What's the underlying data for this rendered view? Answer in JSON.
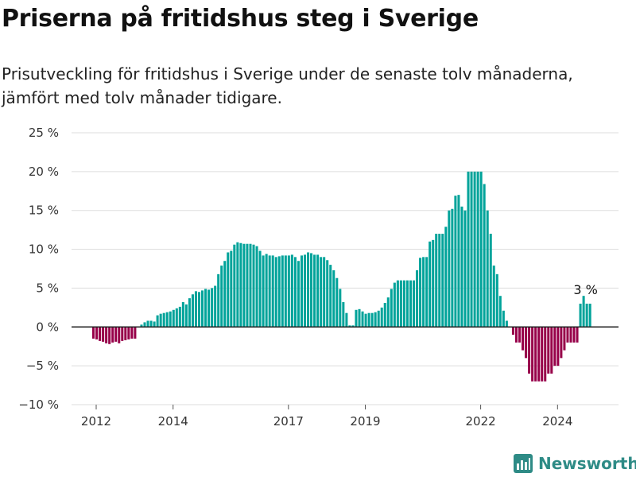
{
  "title": "Priserna på fritidshus steg i Sverige",
  "subtitle": "Prisutveckling för fritidshus i Sverige under de senaste tolv månaderna, jämfört med tolv månader tidigare.",
  "brand": {
    "name": "Newsworthy",
    "icon": "newsworthy-logo-icon"
  },
  "colors": {
    "positive": "#00a39a",
    "negative": "#970049",
    "grid": "#dddddd",
    "zero_line": "#222222"
  },
  "chart_data": {
    "type": "bar",
    "title": "",
    "xlabel": "",
    "ylabel": "",
    "unit": "%",
    "ylim": [
      -10,
      25
    ],
    "yticks": [
      {
        "value": 25,
        "label": "25 %"
      },
      {
        "value": 20,
        "label": "20 %"
      },
      {
        "value": 15,
        "label": "15 %"
      },
      {
        "value": 10,
        "label": "10 %"
      },
      {
        "value": 5,
        "label": "5 %"
      },
      {
        "value": 0,
        "label": "0 %"
      },
      {
        "value": -5,
        "label": "−5 %"
      },
      {
        "value": -10,
        "label": "−10 %"
      }
    ],
    "xticks": [
      "2012",
      "2014",
      "2017",
      "2019",
      "2022",
      "2024"
    ],
    "grid": true,
    "start": "2012-01",
    "annotation": {
      "label": "3 %",
      "value": 3
    },
    "values": [
      -1.5,
      -1.6,
      -1.8,
      -1.9,
      -2.1,
      -2.2,
      -2.0,
      -1.9,
      -2.1,
      -1.8,
      -1.7,
      -1.6,
      -1.5,
      -1.5,
      0,
      0.3,
      0.6,
      0.8,
      0.8,
      0.7,
      1.5,
      1.7,
      1.8,
      1.9,
      2.0,
      2.2,
      2.4,
      2.6,
      3.2,
      2.9,
      3.7,
      4.2,
      4.6,
      4.5,
      4.7,
      4.9,
      4.8,
      5.0,
      5.3,
      6.8,
      7.9,
      8.5,
      9.6,
      9.8,
      10.6,
      10.9,
      10.8,
      10.7,
      10.7,
      10.7,
      10.6,
      10.4,
      9.8,
      9.2,
      9.4,
      9.2,
      9.2,
      9.0,
      9.1,
      9.2,
      9.2,
      9.2,
      9.3,
      9.0,
      8.5,
      9.2,
      9.3,
      9.6,
      9.5,
      9.3,
      9.3,
      9.0,
      9.0,
      8.6,
      8.0,
      7.3,
      6.3,
      4.9,
      3.2,
      1.8,
      0.2,
      0.2,
      2.2,
      2.3,
      2.0,
      1.7,
      1.8,
      1.8,
      1.9,
      2.1,
      2.5,
      3.1,
      3.8,
      4.9,
      5.7,
      6.0,
      6.0,
      6.0,
      6.0,
      6.0,
      6.0,
      7.3,
      8.9,
      9.0,
      9.0,
      11.0,
      11.2,
      12.0,
      12.0,
      12.0,
      12.9,
      15.0,
      15.2,
      16.9,
      17.0,
      15.5,
      15.0,
      20.0,
      20.0,
      20.0,
      20.0,
      20.0,
      18.4,
      15.0,
      12.0,
      7.9,
      6.8,
      4.0,
      2.1,
      0.8,
      0,
      -1.0,
      -2.0,
      -2.0,
      -3.0,
      -4.0,
      -6.0,
      -7.0,
      -7.0,
      -7.0,
      -7.0,
      -7.0,
      -6.0,
      -6.0,
      -5.0,
      -5.0,
      -4.0,
      -3.0,
      -2.0,
      -2.0,
      -2.0,
      -2.0,
      3.0,
      4.0,
      3.0,
      3.0
    ]
  }
}
